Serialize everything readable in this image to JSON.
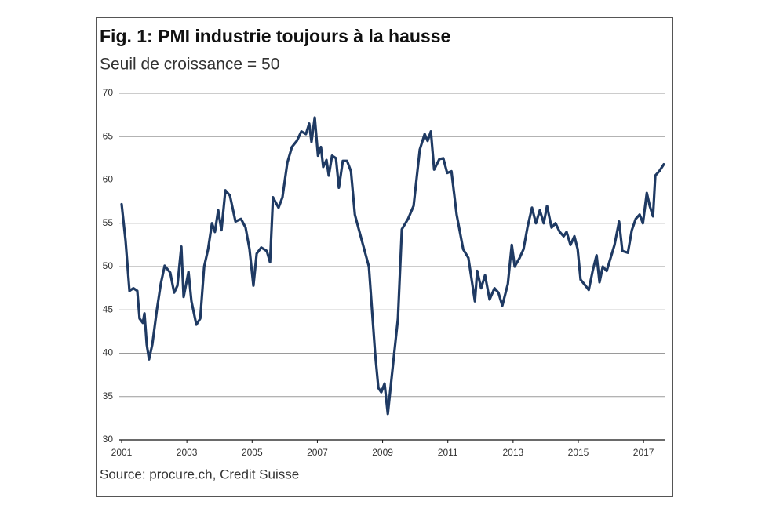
{
  "chart_data": {
    "type": "line",
    "title": "Fig. 1: PMI industrie toujours à la hausse",
    "subtitle": "Seuil de croissance = 50",
    "source": "Source: procure.ch, Credit Suisse",
    "color": "#1f3a63",
    "grid": true,
    "xlim": [
      2001,
      2017.67
    ],
    "xticks": [
      2001,
      2003,
      2005,
      2007,
      2009,
      2011,
      2013,
      2015,
      2017
    ],
    "ylim": [
      30,
      70
    ],
    "yticks": [
      30,
      35,
      40,
      45,
      50,
      55,
      60,
      65,
      70
    ],
    "x": [
      2001.0,
      2001.12,
      2001.24,
      2001.36,
      2001.48,
      2001.55,
      2001.65,
      2001.7,
      2001.77,
      2001.84,
      2001.94,
      2002.08,
      2002.2,
      2002.32,
      2002.49,
      2002.61,
      2002.71,
      2002.83,
      2002.9,
      2003.05,
      2003.14,
      2003.29,
      2003.41,
      2003.53,
      2003.65,
      2003.77,
      2003.86,
      2003.96,
      2004.06,
      2004.18,
      2004.32,
      2004.49,
      2004.66,
      2004.8,
      2004.92,
      2005.04,
      2005.14,
      2005.28,
      2005.45,
      2005.55,
      2005.64,
      2005.81,
      2005.93,
      2006.08,
      2006.22,
      2006.37,
      2006.51,
      2006.65,
      2006.75,
      2006.82,
      2006.92,
      2007.02,
      2007.11,
      2007.18,
      2007.28,
      2007.35,
      2007.45,
      2007.57,
      2007.66,
      2007.78,
      2007.91,
      2008.03,
      2008.15,
      2008.22,
      2008.58,
      2008.77,
      2008.87,
      2008.96,
      2009.06,
      2009.16,
      2009.3,
      2009.47,
      2009.59,
      2009.78,
      2009.95,
      2010.14,
      2010.29,
      2010.38,
      2010.48,
      2010.58,
      2010.74,
      2010.86,
      2010.98,
      2011.11,
      2011.27,
      2011.47,
      2011.63,
      2011.83,
      2011.9,
      2012.02,
      2012.14,
      2012.28,
      2012.43,
      2012.55,
      2012.67,
      2012.84,
      2012.96,
      2013.05,
      2013.2,
      2013.32,
      2013.44,
      2013.58,
      2013.7,
      2013.82,
      2013.94,
      2014.04,
      2014.18,
      2014.3,
      2014.43,
      2014.55,
      2014.64,
      2014.76,
      2014.88,
      2014.98,
      2015.07,
      2015.22,
      2015.32,
      2015.44,
      2015.56,
      2015.65,
      2015.75,
      2015.87,
      2015.99,
      2016.11,
      2016.25,
      2016.35,
      2016.52,
      2016.64,
      2016.76,
      2016.88,
      2016.98,
      2017.1,
      2017.19,
      2017.29,
      2017.36,
      2017.48,
      2017.62
    ],
    "values": [
      57.2,
      53,
      47.2,
      47.5,
      47.2,
      44,
      43.5,
      44.6,
      41,
      39.3,
      41,
      45,
      48,
      50.1,
      49.3,
      47,
      47.8,
      52.3,
      46.5,
      49.4,
      46,
      43.3,
      44,
      50,
      52,
      55,
      54,
      56.5,
      54.2,
      58.8,
      58.2,
      55.2,
      55.5,
      54.5,
      52,
      47.8,
      51.5,
      52.2,
      51.8,
      50.5,
      58,
      56.8,
      58,
      62,
      63.8,
      64.5,
      65.6,
      65.3,
      66.5,
      64.4,
      67.2,
      62.8,
      63.8,
      61.5,
      62.3,
      60.5,
      62.8,
      62.5,
      59.1,
      62.2,
      62.2,
      61,
      56,
      55,
      50,
      40,
      36,
      35.5,
      36.5,
      33,
      38,
      44,
      54.3,
      55.5,
      57,
      63.5,
      65.3,
      64.5,
      65.6,
      61.2,
      62.4,
      62.5,
      60.8,
      61,
      56,
      52,
      51,
      46,
      49.5,
      47.5,
      49,
      46.2,
      47.5,
      47,
      45.5,
      48,
      52.5,
      50,
      51,
      52,
      54.5,
      56.8,
      55,
      56.5,
      55,
      57,
      54.5,
      55,
      54,
      53.5,
      54,
      52.5,
      53.5,
      52,
      48.5,
      47.8,
      47.3,
      49.5,
      51.3,
      48.2,
      50,
      49.5,
      51,
      52.5,
      55.2,
      51.8,
      51.6,
      54.2,
      55.5,
      56,
      55,
      58.5,
      57,
      55.8,
      60.5,
      61,
      61.8
    ]
  }
}
